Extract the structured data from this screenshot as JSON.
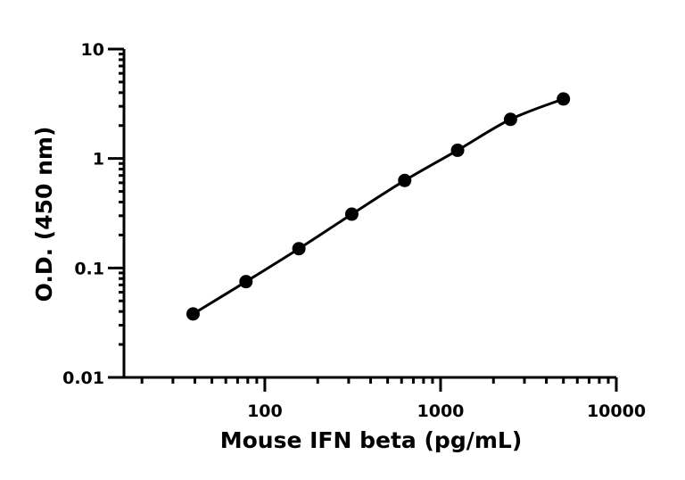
{
  "chart_data": {
    "type": "line",
    "title": "",
    "xlabel": "Mouse IFN beta (pg/mL)",
    "ylabel": "O.D. (450 nm)",
    "xscale": "log",
    "yscale": "log",
    "xlim": [
      15.8,
      10000
    ],
    "ylim": [
      0.01,
      10
    ],
    "xticks": [
      100,
      1000,
      10000
    ],
    "xtick_labels": [
      "100",
      "1000",
      "10000"
    ],
    "yticks": [
      0.01,
      0.1,
      1,
      10
    ],
    "ytick_labels": [
      "0.01",
      "0.1",
      "1",
      "10"
    ],
    "grid": false,
    "series": [
      {
        "x": [
          39.06,
          78.13,
          156.25,
          312.5,
          625,
          1250,
          2500,
          5000
        ],
        "y": [
          0.038,
          0.075,
          0.15,
          0.31,
          0.63,
          1.19,
          2.28,
          3.5
        ],
        "color": "#000000",
        "marker": "circle"
      }
    ]
  }
}
